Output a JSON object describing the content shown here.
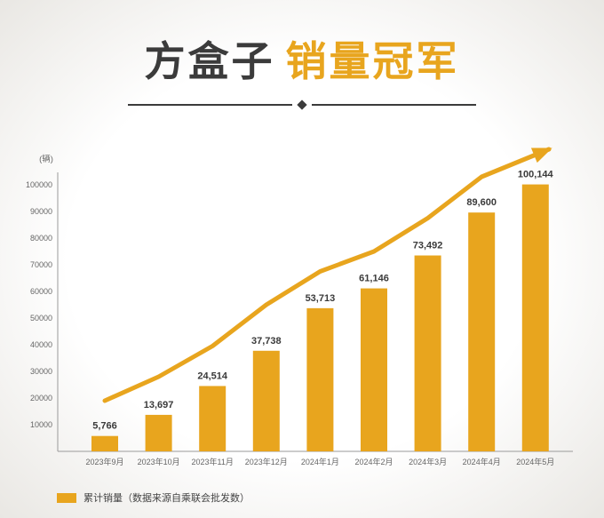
{
  "title": {
    "part1": "方盒子",
    "part2": "销量冠军"
  },
  "colors": {
    "accent": "#E8A51E",
    "dark": "#3B3B3B"
  },
  "chart_data": {
    "type": "bar",
    "title": "方盒子销量冠军",
    "unit_label": "(辆)",
    "categories": [
      "2023年9月",
      "2023年10月",
      "2023年11月",
      "2023年12月",
      "2024年1月",
      "2024年2月",
      "2024年3月",
      "2024年4月",
      "2024年5月"
    ],
    "series": [
      {
        "name": "累计销量",
        "type": "bar",
        "values": [
          5766,
          13697,
          24514,
          37738,
          53713,
          61146,
          73492,
          89600,
          100144
        ]
      },
      {
        "name": "趋势箭头",
        "type": "line",
        "values": [
          19000,
          28000,
          39500,
          55000,
          67500,
          75000,
          87500,
          103000
        ]
      }
    ],
    "ylim": [
      0,
      100000
    ],
    "yticks": [
      10000,
      20000,
      30000,
      40000,
      50000,
      60000,
      70000,
      80000,
      90000,
      100000
    ],
    "grid": false,
    "legend_position": "bottom-left",
    "colors": {
      "bar": "#E8A51E",
      "line": "#E8A51E",
      "value_label": "#3A3A3A",
      "axis": "#9A9A9A",
      "tick_text": "#666666"
    }
  },
  "legend": {
    "label": "累计销量（数据来源自乘联会批发数）"
  }
}
